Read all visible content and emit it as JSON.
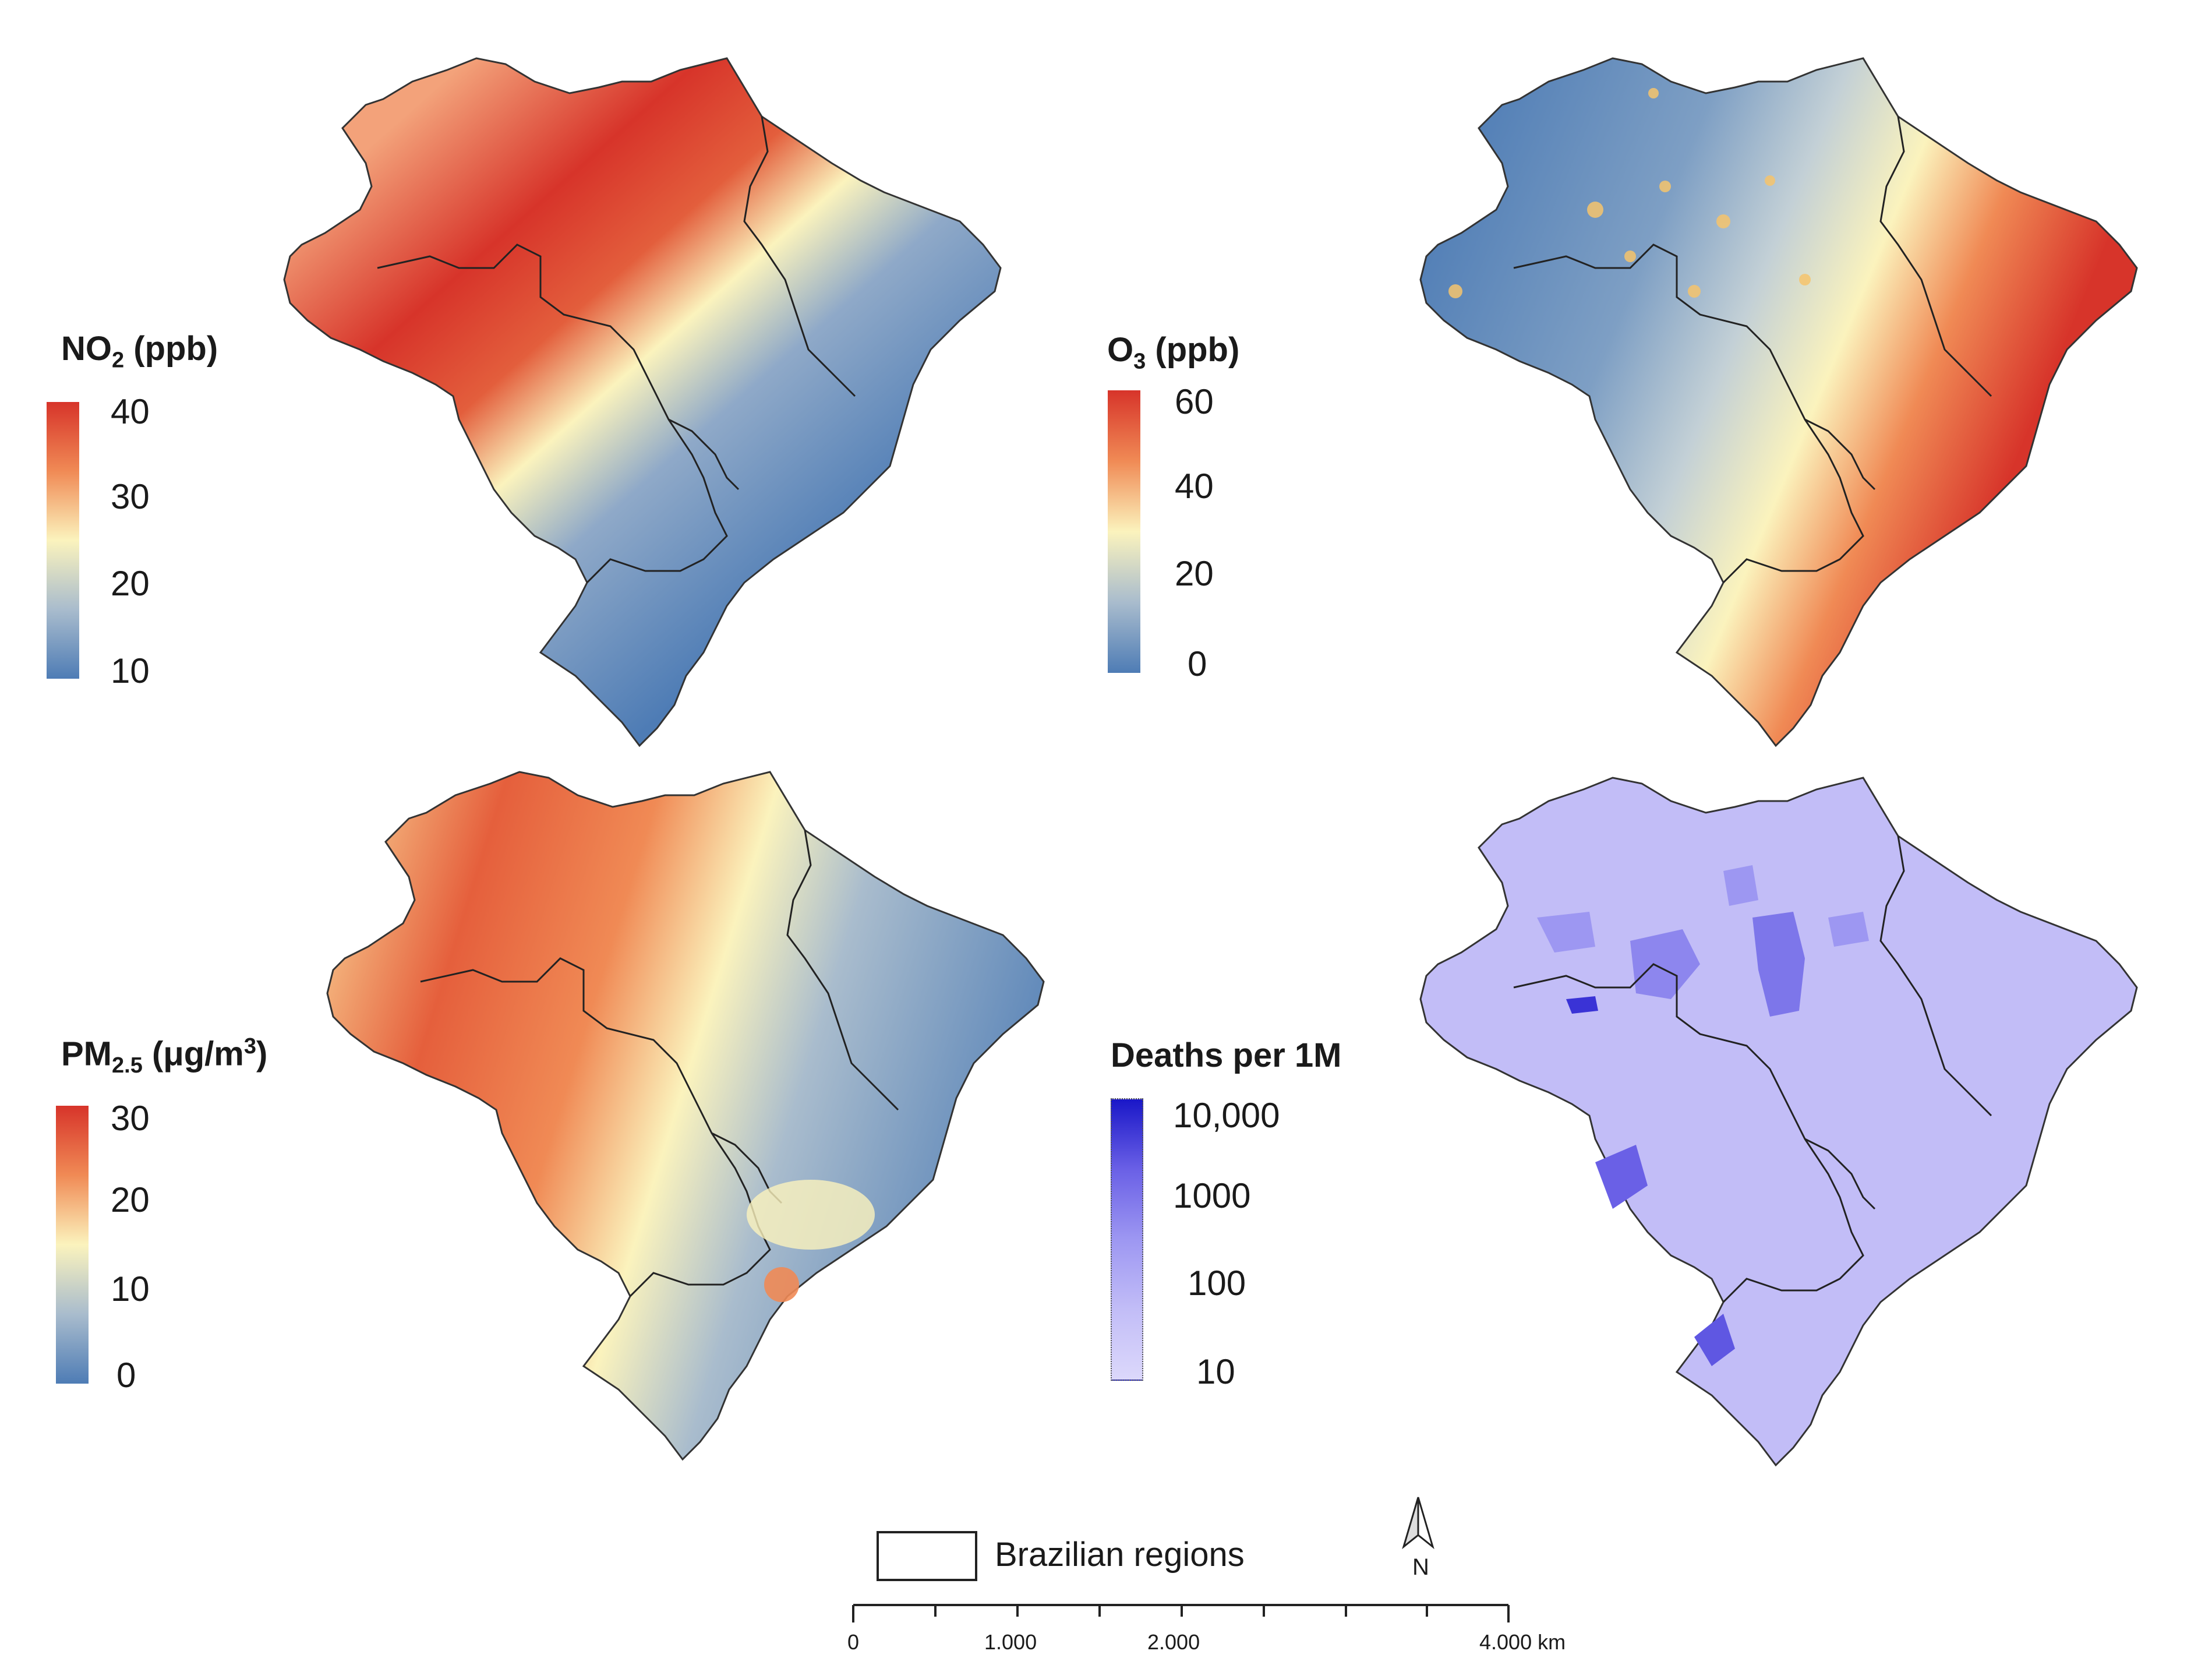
{
  "figure": {
    "panels": [
      {
        "id": "no2",
        "legend_title_main": "NO",
        "legend_title_sub": "2",
        "legend_title_rest": " (ppb)",
        "ticks": [
          "40",
          "30",
          "20",
          "10"
        ],
        "colors": {
          "high": "#d7342a",
          "midhigh": "#f08a55",
          "mid": "#fbf3bd",
          "midlow": "#a9bccd",
          "low": "#4e7cb5"
        },
        "pattern": "northwest-band"
      },
      {
        "id": "o3",
        "legend_title_main": "O",
        "legend_title_sub": "3",
        "legend_title_rest": " (ppb)",
        "ticks": [
          "60",
          "40",
          "20",
          "0"
        ],
        "colors": {
          "high": "#d7342a",
          "midhigh": "#f08a55",
          "mid": "#fbf3bd",
          "midlow": "#a9bccd",
          "low": "#4e7cb5"
        },
        "pattern": "east-high"
      },
      {
        "id": "pm25",
        "legend_title_main": "PM",
        "legend_title_sub": "2.5",
        "legend_title_rest": " (μg/m",
        "legend_title_sup": "3",
        "legend_title_close": ")",
        "ticks": [
          "30",
          "20",
          "10",
          "0"
        ],
        "colors": {
          "high": "#d7342a",
          "midhigh": "#f08a55",
          "mid": "#fbf3bd",
          "midlow": "#a9bccd",
          "low": "#4e7cb5"
        },
        "pattern": "west-high"
      },
      {
        "id": "deaths",
        "legend_title_main": "Deaths per 1M",
        "ticks": [
          "10,000",
          "1000",
          "100",
          "10"
        ],
        "colors": {
          "high": "#1a17c8",
          "midhigh": "#6a60e6",
          "mid": "#9d97f2",
          "midlow": "#c2bdf7",
          "low": "#dcd8fb"
        },
        "pattern": "patchy"
      }
    ],
    "region_legend_label": "Brazilian regions",
    "north_arrow_label": "N",
    "scale_bar": {
      "labels": [
        "0",
        "1.000",
        "2.000",
        "4.000 km"
      ],
      "values_km": [
        0,
        1000,
        2000,
        4000
      ]
    }
  }
}
